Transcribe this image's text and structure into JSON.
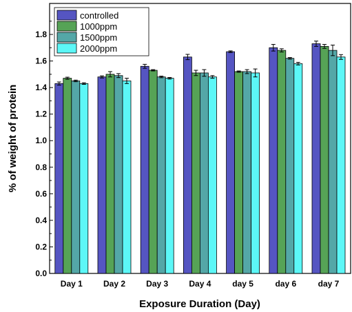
{
  "chart_data": {
    "type": "bar",
    "xlabel": "Exposure Duration (Day)",
    "ylabel": "% of weight of protein",
    "ylim": [
      0,
      1.95
    ],
    "yticks": [
      "0.0",
      "0.2",
      "0.4",
      "0.6",
      "0.8",
      "1.0",
      "1.2",
      "1.4",
      "1.6",
      "1.8"
    ],
    "categories": [
      "Day 1",
      "Day 2",
      "Day 3",
      "Day 4",
      "day 5",
      "day 6",
      "day 7"
    ],
    "legend_position": "top-left",
    "series": [
      {
        "name": "controlled",
        "color": "#5555c2",
        "values": [
          1.43,
          1.48,
          1.56,
          1.63,
          1.67,
          1.7,
          1.73
        ],
        "errors": [
          0.012,
          0.008,
          0.015,
          0.02,
          0.006,
          0.025,
          0.02
        ]
      },
      {
        "name": "1000ppm",
        "color": "#56a356",
        "values": [
          1.47,
          1.5,
          1.53,
          1.51,
          1.52,
          1.68,
          1.71
        ],
        "errors": [
          0.008,
          0.02,
          0.005,
          0.02,
          0.005,
          0.012,
          0.015
        ]
      },
      {
        "name": "1500ppm",
        "color": "#54a7a7",
        "values": [
          1.45,
          1.49,
          1.48,
          1.51,
          1.52,
          1.62,
          1.68
        ],
        "errors": [
          0.006,
          0.015,
          0.006,
          0.025,
          0.015,
          0.006,
          0.04
        ]
      },
      {
        "name": "2000ppm",
        "color": "#5cf7f7",
        "values": [
          1.43,
          1.45,
          1.47,
          1.48,
          1.51,
          1.58,
          1.63
        ],
        "errors": [
          0.006,
          0.02,
          0.006,
          0.01,
          0.03,
          0.01,
          0.018
        ]
      }
    ]
  }
}
